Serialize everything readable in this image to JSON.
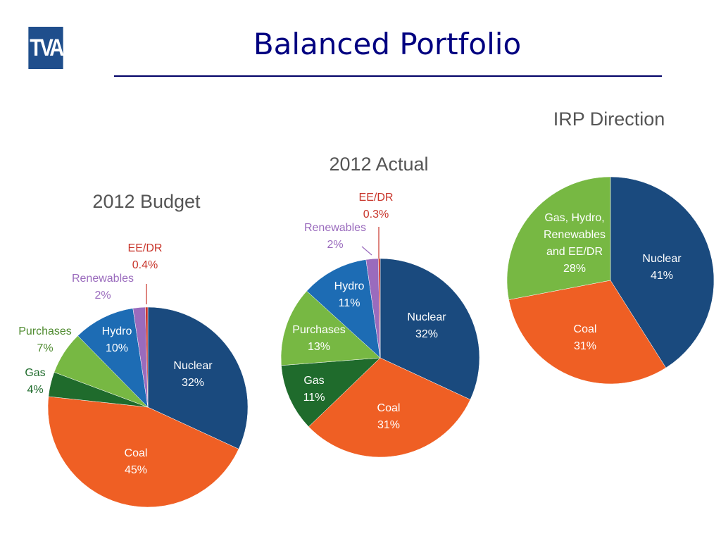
{
  "header": {
    "logo_text": "TVA",
    "title": "Balanced Portfolio"
  },
  "colors": {
    "nuclear": "#1a4a7e",
    "coal": "#ef5f24",
    "gas": "#1f6b2c",
    "purchases": "#77b843",
    "hydro": "#1d6cb4",
    "renewables": "#9a6bbd",
    "eedr": "#c8342a",
    "title_blue": "#000080",
    "chart_title_gray": "#555555"
  },
  "chart_data": [
    {
      "type": "pie",
      "title": "2012 Budget",
      "slices": [
        {
          "label": "Nuclear",
          "value": 32,
          "value_text": "32%",
          "color": "#1a4a7e",
          "label_color": "#ffffff"
        },
        {
          "label": "Coal",
          "value": 45,
          "value_text": "45%",
          "color": "#ef5f24",
          "label_color": "#ffffff"
        },
        {
          "label": "Gas",
          "value": 4,
          "value_text": "4%",
          "color": "#1f6b2c",
          "label_color": "#1f6b2c"
        },
        {
          "label": "Purchases",
          "value": 7,
          "value_text": "7%",
          "color": "#77b843",
          "label_color": "#4e8a2e"
        },
        {
          "label": "Hydro",
          "value": 10,
          "value_text": "10%",
          "color": "#1d6cb4",
          "label_color": "#ffffff"
        },
        {
          "label": "Renewables",
          "value": 2,
          "value_text": "2%",
          "color": "#9a6bbd",
          "label_color": "#9a6bbd"
        },
        {
          "label": "EE/DR",
          "value": 0.4,
          "value_text": "0.4%",
          "color": "#c8342a",
          "label_color": "#c8342a"
        }
      ]
    },
    {
      "type": "pie",
      "title": "2012 Actual",
      "slices": [
        {
          "label": "Nuclear",
          "value": 32,
          "value_text": "32%",
          "color": "#1a4a7e",
          "label_color": "#ffffff"
        },
        {
          "label": "Coal",
          "value": 31,
          "value_text": "31%",
          "color": "#ef5f24",
          "label_color": "#ffffff"
        },
        {
          "label": "Gas",
          "value": 11,
          "value_text": "11%",
          "color": "#1f6b2c",
          "label_color": "#ffffff"
        },
        {
          "label": "Purchases",
          "value": 13,
          "value_text": "13%",
          "color": "#77b843",
          "label_color": "#ffffff"
        },
        {
          "label": "Hydro",
          "value": 11,
          "value_text": "11%",
          "color": "#1d6cb4",
          "label_color": "#ffffff"
        },
        {
          "label": "Renewables",
          "value": 2,
          "value_text": "2%",
          "color": "#9a6bbd",
          "label_color": "#9a6bbd"
        },
        {
          "label": "EE/DR",
          "value": 0.3,
          "value_text": "0.3%",
          "color": "#c8342a",
          "label_color": "#c8342a"
        }
      ]
    },
    {
      "type": "pie",
      "title": "IRP Direction",
      "slices": [
        {
          "label": "Nuclear",
          "value": 41,
          "value_text": "41%",
          "color": "#1a4a7e",
          "label_color": "#ffffff"
        },
        {
          "label": "Coal",
          "value": 31,
          "value_text": "31%",
          "color": "#ef5f24",
          "label_color": "#ffffff"
        },
        {
          "label": "Gas, Hydro, Renewables and EE/DR",
          "value": 28,
          "value_text": "28%",
          "color": "#77b843",
          "label_color": "#ffffff"
        }
      ]
    }
  ]
}
